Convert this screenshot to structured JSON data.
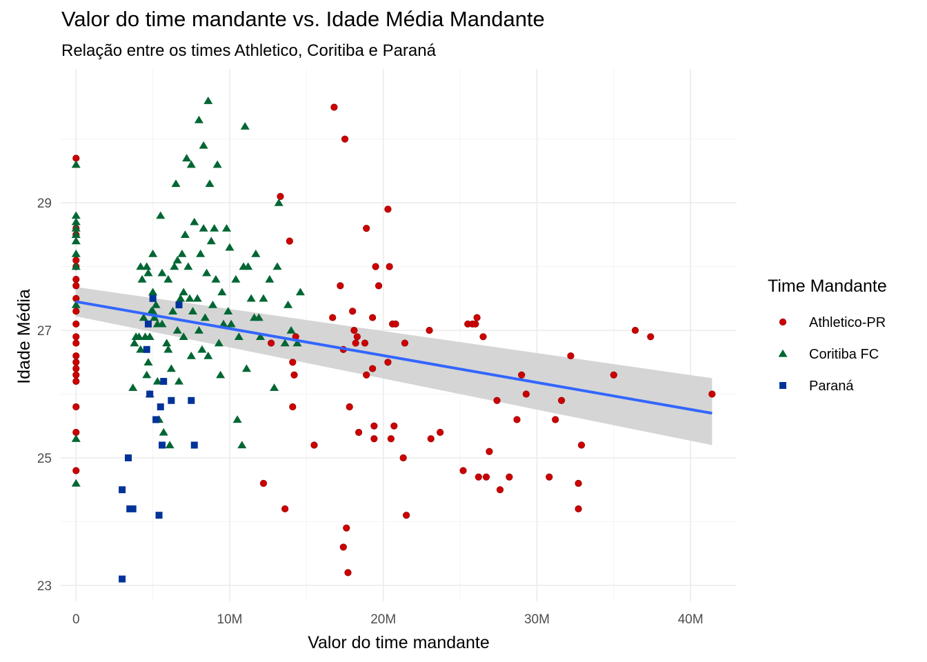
{
  "chart_data": {
    "type": "scatter",
    "title": "Valor do time mandante vs. Idade Média Mandante",
    "subtitle": "Relação entre os times Athletico, Coritiba e Paraná",
    "xlabel": "Valor do time mandante",
    "ylabel": "Idade Média",
    "xlim": [
      -1000000,
      43000000
    ],
    "ylim": [
      22.75,
      31.1
    ],
    "x_ticks": [
      0,
      10000000,
      20000000,
      30000000,
      40000000
    ],
    "x_tick_labels": [
      "0",
      "10M",
      "20M",
      "30M",
      "40M"
    ],
    "y_ticks": [
      23,
      25,
      27,
      29
    ],
    "y_tick_labels": [
      "23",
      "25",
      "27",
      "29"
    ],
    "y_minor_ticks": [
      24,
      26,
      28,
      30
    ],
    "grid": true,
    "legend": {
      "title": "Time Mandante",
      "position": "right"
    },
    "trend": {
      "method": "linear",
      "x": [
        0,
        41400000
      ],
      "y": [
        27.45,
        25.7
      ],
      "ci_lower": [
        27.22,
        25.2
      ],
      "ci_upper": [
        27.68,
        26.25
      ],
      "color": "#3366ff",
      "band_color": "#d3d3d3"
    },
    "series": [
      {
        "name": "Athletico-PR",
        "shape": "circle",
        "color": "#cc0000",
        "points": [
          [
            0,
            29.7
          ],
          [
            0,
            28.6
          ],
          [
            0,
            28.5
          ],
          [
            0,
            28.1
          ],
          [
            0,
            28.0
          ],
          [
            0,
            27.8
          ],
          [
            0,
            27.7
          ],
          [
            0,
            27.5
          ],
          [
            0,
            27.3
          ],
          [
            0,
            27.1
          ],
          [
            0,
            26.9
          ],
          [
            0,
            26.8
          ],
          [
            0,
            26.6
          ],
          [
            0,
            26.5
          ],
          [
            0,
            26.4
          ],
          [
            0,
            26.3
          ],
          [
            0,
            26.2
          ],
          [
            0,
            25.8
          ],
          [
            0,
            25.4
          ],
          [
            0,
            24.8
          ],
          [
            13.3,
            29.1
          ],
          [
            13.9,
            28.4
          ],
          [
            14.1,
            26.5
          ],
          [
            14.2,
            26.3
          ],
          [
            14.3,
            26.9
          ],
          [
            14.1,
            25.8
          ],
          [
            12.7,
            26.8
          ],
          [
            12.2,
            24.6
          ],
          [
            13.6,
            24.2
          ],
          [
            15.5,
            25.2
          ],
          [
            16.8,
            30.5
          ],
          [
            17.5,
            30.0
          ],
          [
            16.7,
            27.2
          ],
          [
            17.2,
            27.7
          ],
          [
            17.4,
            26.7
          ],
          [
            17.6,
            23.9
          ],
          [
            17.7,
            23.2
          ],
          [
            17.4,
            23.6
          ],
          [
            17.8,
            25.8
          ],
          [
            18.0,
            27.3
          ],
          [
            18.1,
            27.0
          ],
          [
            18.2,
            26.8
          ],
          [
            18.3,
            26.9
          ],
          [
            18.4,
            25.4
          ],
          [
            18.8,
            26.8
          ],
          [
            18.9,
            28.6
          ],
          [
            18.9,
            26.3
          ],
          [
            19.3,
            26.4
          ],
          [
            19.3,
            27.2
          ],
          [
            19.5,
            28.0
          ],
          [
            19.4,
            25.5
          ],
          [
            19.4,
            25.3
          ],
          [
            19.7,
            27.7
          ],
          [
            20.3,
            28.9
          ],
          [
            20.4,
            28.0
          ],
          [
            20.3,
            26.5
          ],
          [
            20.5,
            25.3
          ],
          [
            20.6,
            27.1
          ],
          [
            20.7,
            25.5
          ],
          [
            20.8,
            27.1
          ],
          [
            21.3,
            25.0
          ],
          [
            21.4,
            26.8
          ],
          [
            21.5,
            24.1
          ],
          [
            23.0,
            27.0
          ],
          [
            23.1,
            25.3
          ],
          [
            23.7,
            25.4
          ],
          [
            25.2,
            24.8
          ],
          [
            25.5,
            27.1
          ],
          [
            25.8,
            27.1
          ],
          [
            26.0,
            27.1
          ],
          [
            26.1,
            27.2
          ],
          [
            26.2,
            24.7
          ],
          [
            26.5,
            26.9
          ],
          [
            26.7,
            24.7
          ],
          [
            26.9,
            25.1
          ],
          [
            27.4,
            25.9
          ],
          [
            27.6,
            24.5
          ],
          [
            28.2,
            24.7
          ],
          [
            28.7,
            25.6
          ],
          [
            29.0,
            26.3
          ],
          [
            29.3,
            26.0
          ],
          [
            30.8,
            24.7
          ],
          [
            31.2,
            25.6
          ],
          [
            31.6,
            25.9
          ],
          [
            32.2,
            26.6
          ],
          [
            32.7,
            24.6
          ],
          [
            32.7,
            24.2
          ],
          [
            32.9,
            25.2
          ],
          [
            35.0,
            26.3
          ],
          [
            36.4,
            27.0
          ],
          [
            37.4,
            26.9
          ],
          [
            41.4,
            26.0
          ]
        ]
      },
      {
        "name": "Coritiba FC",
        "shape": "triangle",
        "color": "#006633",
        "points": [
          [
            0,
            29.6
          ],
          [
            0,
            28.8
          ],
          [
            0,
            28.7
          ],
          [
            0,
            28.6
          ],
          [
            0,
            28.5
          ],
          [
            0,
            28.4
          ],
          [
            0,
            28.2
          ],
          [
            0,
            28.0
          ],
          [
            0,
            27.4
          ],
          [
            0,
            25.3
          ],
          [
            0,
            24.6
          ],
          [
            3.7,
            26.1
          ],
          [
            3.8,
            26.8
          ],
          [
            3.9,
            26.9
          ],
          [
            4.1,
            26.9
          ],
          [
            4.2,
            26.7
          ],
          [
            4.2,
            28.0
          ],
          [
            4.3,
            27.8
          ],
          [
            4.4,
            27.2
          ],
          [
            4.5,
            26.9
          ],
          [
            4.6,
            26.3
          ],
          [
            4.6,
            28.0
          ],
          [
            4.7,
            27.9
          ],
          [
            4.7,
            26.5
          ],
          [
            4.8,
            26.0
          ],
          [
            4.8,
            26.9
          ],
          [
            4.9,
            27.3
          ],
          [
            5.0,
            27.3
          ],
          [
            5.0,
            28.2
          ],
          [
            5.0,
            27.6
          ],
          [
            5.1,
            27.2
          ],
          [
            5.2,
            27.4
          ],
          [
            5.3,
            27.1
          ],
          [
            5.3,
            26.2
          ],
          [
            5.4,
            25.6
          ],
          [
            5.5,
            28.8
          ],
          [
            5.6,
            27.9
          ],
          [
            5.6,
            27.1
          ],
          [
            5.7,
            25.4
          ],
          [
            5.9,
            26.8
          ],
          [
            6.0,
            27.8
          ],
          [
            6.0,
            26.7
          ],
          [
            6.1,
            25.2
          ],
          [
            6.2,
            26.4
          ],
          [
            6.3,
            27.3
          ],
          [
            6.4,
            28.0
          ],
          [
            6.5,
            29.3
          ],
          [
            6.6,
            28.1
          ],
          [
            6.6,
            27.0
          ],
          [
            6.7,
            26.2
          ],
          [
            6.8,
            27.5
          ],
          [
            6.9,
            28.2
          ],
          [
            7.0,
            26.9
          ],
          [
            7.0,
            27.6
          ],
          [
            7.1,
            28.5
          ],
          [
            7.2,
            29.7
          ],
          [
            7.3,
            28.0
          ],
          [
            7.4,
            27.5
          ],
          [
            7.5,
            29.6
          ],
          [
            7.5,
            26.6
          ],
          [
            7.6,
            27.3
          ],
          [
            7.7,
            28.7
          ],
          [
            7.9,
            27.5
          ],
          [
            8.0,
            30.3
          ],
          [
            8.0,
            27.0
          ],
          [
            8.1,
            28.2
          ],
          [
            8.2,
            26.7
          ],
          [
            8.3,
            29.9
          ],
          [
            8.3,
            28.6
          ],
          [
            8.4,
            27.2
          ],
          [
            8.5,
            27.9
          ],
          [
            8.6,
            30.6
          ],
          [
            8.6,
            26.6
          ],
          [
            8.7,
            29.3
          ],
          [
            8.8,
            28.4
          ],
          [
            8.9,
            27.4
          ],
          [
            9.0,
            28.6
          ],
          [
            9.1,
            27.8
          ],
          [
            9.2,
            29.6
          ],
          [
            9.3,
            26.8
          ],
          [
            9.4,
            26.3
          ],
          [
            9.5,
            27.6
          ],
          [
            9.6,
            27.1
          ],
          [
            9.8,
            28.6
          ],
          [
            9.9,
            27.3
          ],
          [
            10.0,
            28.3
          ],
          [
            10.1,
            27.1
          ],
          [
            10.4,
            27.8
          ],
          [
            10.5,
            25.6
          ],
          [
            10.6,
            26.9
          ],
          [
            10.8,
            25.2
          ],
          [
            10.9,
            28.0
          ],
          [
            11.0,
            30.2
          ],
          [
            11.1,
            26.4
          ],
          [
            11.2,
            28.0
          ],
          [
            11.4,
            27.5
          ],
          [
            11.6,
            27.2
          ],
          [
            11.7,
            28.2
          ],
          [
            11.9,
            27.2
          ],
          [
            12.0,
            26.9
          ],
          [
            12.2,
            27.5
          ],
          [
            12.6,
            27.8
          ],
          [
            12.9,
            26.1
          ],
          [
            13.1,
            28.0
          ],
          [
            13.2,
            29.0
          ],
          [
            13.6,
            26.8
          ],
          [
            13.8,
            27.4
          ],
          [
            14.0,
            27.0
          ],
          [
            14.4,
            26.8
          ],
          [
            14.6,
            27.6
          ]
        ]
      },
      {
        "name": "Paraná",
        "shape": "square",
        "color": "#003399",
        "points": [
          [
            3.0,
            24.5
          ],
          [
            3.0,
            23.1
          ],
          [
            3.4,
            25.0
          ],
          [
            3.5,
            24.2
          ],
          [
            3.7,
            24.2
          ],
          [
            4.6,
            26.7
          ],
          [
            4.7,
            27.1
          ],
          [
            4.8,
            26.0
          ],
          [
            5.0,
            27.5
          ],
          [
            5.2,
            25.6
          ],
          [
            5.4,
            24.1
          ],
          [
            5.5,
            25.8
          ],
          [
            5.6,
            25.2
          ],
          [
            5.7,
            26.2
          ],
          [
            6.2,
            25.9
          ],
          [
            6.7,
            27.4
          ],
          [
            7.5,
            25.9
          ],
          [
            7.7,
            25.2
          ]
        ]
      }
    ]
  }
}
